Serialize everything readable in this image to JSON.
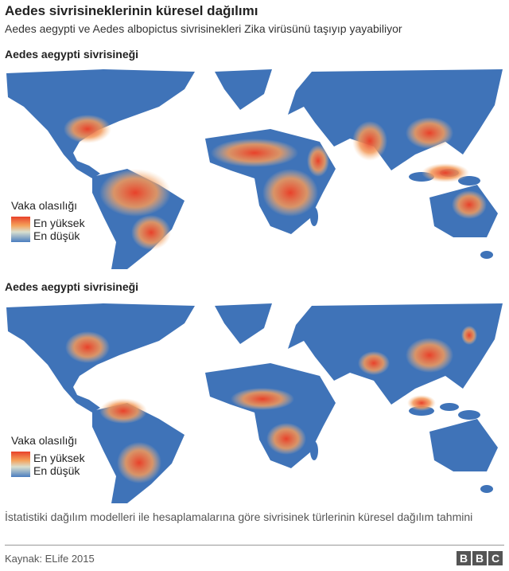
{
  "header": {
    "title": "Aedes sivrisineklerinin küresel dağılımı",
    "subtitle": "Aedes aegypti ve Aedes albopictus sivrisinekleri Zika virüsünü taşıyıp yayabiliyor"
  },
  "maps": [
    {
      "title": "Aedes aegypti sivrisineği",
      "legend_title": "Vaka olasılığı",
      "legend_high": "En yüksek",
      "legend_low": "En düşük"
    },
    {
      "title": "Aedes aegypti sivrisineği",
      "legend_title": "Vaka olasılığı",
      "legend_high": "En yüksek",
      "legend_low": "En düşük"
    }
  ],
  "footer": {
    "note": "İstatistiki dağılım modelleri ile hesaplamalarına göre sivrisinek türlerinin küresel dağılım tahmini",
    "source": "Kaynak: ELife 2015",
    "logo": [
      "B",
      "B",
      "C"
    ]
  }
}
